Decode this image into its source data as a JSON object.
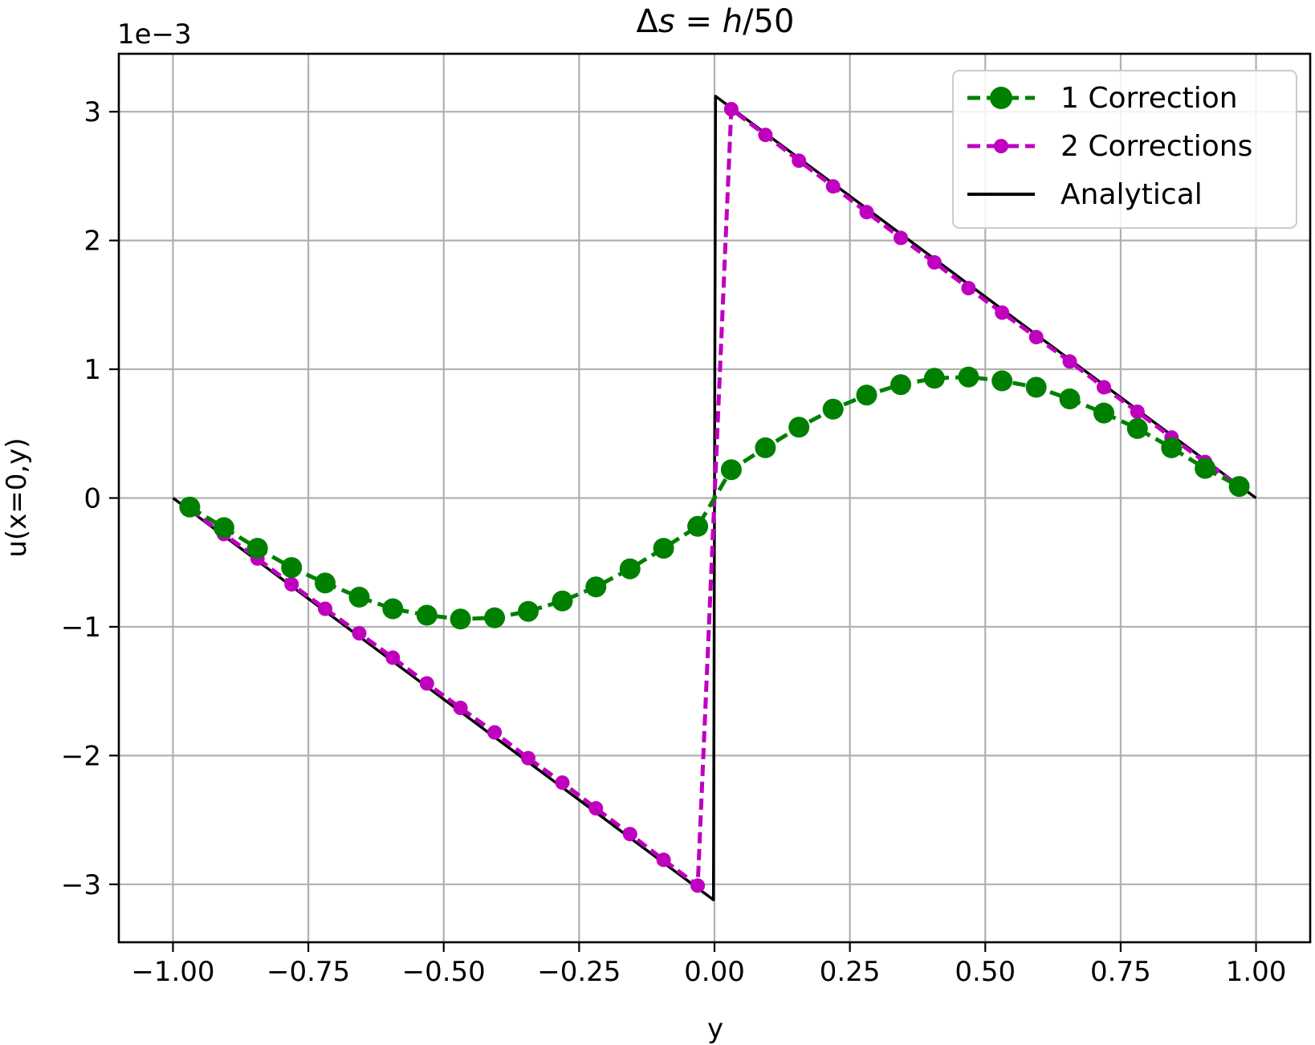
{
  "chart_data": {
    "type": "line",
    "title": "Δs = h/50",
    "title_parts": {
      "delta": "Δ",
      "s": "s",
      "eq": " = ",
      "h": "h",
      "rest": "/50"
    },
    "xlabel": "y",
    "ylabel": "u(x=0,y)",
    "y_multiplier": "1e−3",
    "xlim": [
      -1.1,
      1.1
    ],
    "ylim": [
      -3.45,
      3.45
    ],
    "grid": true,
    "legend_position": "top-right",
    "x_ticks": [
      -1.0,
      -0.75,
      -0.5,
      -0.25,
      0.0,
      0.25,
      0.5,
      0.75,
      1.0
    ],
    "x_tick_labels": [
      "−1.00",
      "−0.75",
      "−0.50",
      "−0.25",
      "0.00",
      "0.25",
      "0.50",
      "0.75",
      "1.00"
    ],
    "y_ticks": [
      -3,
      -2,
      -1,
      0,
      1,
      2,
      3
    ],
    "y_tick_labels": [
      "−3",
      "−2",
      "−1",
      "0",
      "1",
      "2",
      "3"
    ],
    "series": [
      {
        "name": "1 Correction",
        "color": "#008000",
        "style": "dashed",
        "marker": "large-circle",
        "x": [
          -0.969,
          -0.906,
          -0.844,
          -0.781,
          -0.719,
          -0.656,
          -0.594,
          -0.531,
          -0.469,
          -0.406,
          -0.344,
          -0.281,
          -0.219,
          -0.156,
          -0.094,
          -0.031,
          0.031,
          0.094,
          0.156,
          0.219,
          0.281,
          0.344,
          0.406,
          0.469,
          0.531,
          0.594,
          0.656,
          0.719,
          0.781,
          0.844,
          0.906,
          0.969
        ],
        "y": [
          -0.07,
          -0.23,
          -0.39,
          -0.54,
          -0.66,
          -0.77,
          -0.86,
          -0.91,
          -0.94,
          -0.93,
          -0.88,
          -0.8,
          -0.69,
          -0.55,
          -0.39,
          -0.22,
          0.22,
          0.39,
          0.55,
          0.69,
          0.8,
          0.88,
          0.93,
          0.94,
          0.91,
          0.86,
          0.77,
          0.66,
          0.54,
          0.39,
          0.23,
          0.09
        ]
      },
      {
        "name": "2 Corrections",
        "color": "#bf00bf",
        "style": "dashed",
        "marker": "small-circle",
        "x": [
          -0.969,
          -0.906,
          -0.844,
          -0.781,
          -0.719,
          -0.656,
          -0.594,
          -0.531,
          -0.469,
          -0.406,
          -0.344,
          -0.281,
          -0.219,
          -0.156,
          -0.094,
          -0.031,
          0.031,
          0.094,
          0.156,
          0.219,
          0.281,
          0.344,
          0.406,
          0.469,
          0.531,
          0.594,
          0.656,
          0.719,
          0.781,
          0.844,
          0.906,
          0.969
        ],
        "y": [
          -0.09,
          -0.28,
          -0.47,
          -0.67,
          -0.86,
          -1.05,
          -1.24,
          -1.44,
          -1.63,
          -1.82,
          -2.02,
          -2.21,
          -2.41,
          -2.61,
          -2.81,
          -3.01,
          3.02,
          2.82,
          2.62,
          2.42,
          2.22,
          2.02,
          1.83,
          1.63,
          1.44,
          1.25,
          1.06,
          0.86,
          0.67,
          0.47,
          0.28,
          0.09
        ]
      },
      {
        "name": "Analytical",
        "color": "#000000",
        "style": "solid",
        "marker": "none",
        "x": [
          -1.0,
          -0.002,
          0.002,
          1.0
        ],
        "y": [
          0.0,
          -3.12,
          3.12,
          0.0
        ]
      }
    ]
  }
}
